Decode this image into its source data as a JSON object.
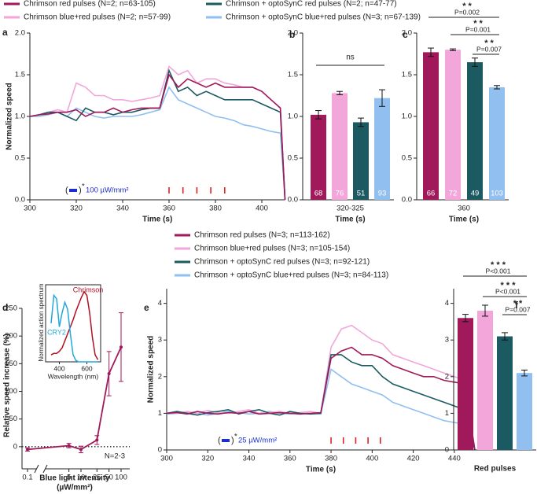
{
  "chart_data": [
    {
      "panel": "a",
      "type": "line",
      "xlabel": "Time (s)",
      "ylabel": "Normalized speed",
      "xlim": [
        300,
        410
      ],
      "xticks": [
        300,
        320,
        340,
        360,
        380,
        400
      ],
      "ylim": [
        0,
        2
      ],
      "yticks": [
        {
          "value": 0,
          "label": "0.0"
        },
        {
          "value": 0.5,
          "label": "0.5"
        },
        {
          "value": 1,
          "label": "1.0"
        },
        {
          "value": 1.5,
          "label": "1.5"
        },
        {
          "value": 2,
          "label": "2.0"
        }
      ],
      "x": [
        300,
        304,
        308,
        312,
        316,
        320,
        324,
        328,
        332,
        336,
        340,
        344,
        348,
        352,
        356,
        360,
        364,
        368,
        372,
        376,
        380,
        384,
        388,
        392,
        396,
        400,
        404,
        408,
        410
      ],
      "series": [
        {
          "name": "Chrimson red pulses (N=2; n=63-105)",
          "color": "#a0195a",
          "values": [
            1.0,
            1.02,
            1.03,
            1.05,
            1.05,
            1.08,
            1.0,
            1.05,
            1.05,
            1.1,
            1.05,
            1.08,
            1.1,
            1.1,
            1.1,
            1.5,
            1.35,
            1.45,
            1.4,
            1.35,
            1.4,
            1.35,
            1.35,
            1.35,
            1.35,
            1.3,
            1.2,
            1.1,
            0
          ]
        },
        {
          "name": "Chrimson blue+red pulses (N=2; n=57-99)",
          "color": "#f2a6da",
          "values": [
            1.0,
            1.02,
            1.05,
            1.08,
            1.05,
            1.4,
            1.35,
            1.25,
            1.25,
            1.2,
            1.2,
            1.18,
            1.2,
            1.22,
            1.25,
            1.6,
            1.5,
            1.55,
            1.4,
            1.45,
            1.45,
            1.4,
            1.38,
            1.35,
            1.35,
            1.3,
            1.2,
            1.1,
            0
          ]
        },
        {
          "name": "Chrimson + optoSynC red pulses (N=2; n=47-77)",
          "color": "#1c5a62",
          "values": [
            1.0,
            1.02,
            1.05,
            1.05,
            1.0,
            0.95,
            1.1,
            1.05,
            1.05,
            1.02,
            1.05,
            1.05,
            1.08,
            1.1,
            1.1,
            1.55,
            1.3,
            1.35,
            1.25,
            1.3,
            1.25,
            1.2,
            1.2,
            1.2,
            1.2,
            1.15,
            1.1,
            1.05,
            0
          ]
        },
        {
          "name": "Chrimson + optoSynC blue+red pulses (N=3; n=67-139)",
          "color": "#90bff0",
          "values": [
            1.0,
            1.0,
            1.02,
            1.05,
            1.0,
            1.1,
            1.05,
            1.0,
            0.98,
            1.0,
            1.0,
            1.0,
            1.02,
            1.05,
            1.08,
            1.35,
            1.2,
            1.15,
            1.1,
            1.05,
            1.0,
            0.98,
            0.95,
            0.9,
            0.88,
            0.85,
            0.82,
            0.8,
            0
          ]
        }
      ],
      "red_pulses": [
        360,
        366,
        372,
        378,
        384
      ],
      "light_note": {
        "open": "(",
        "close": ")",
        "mark": "*",
        "label": "100 µW/mm²"
      },
      "legend": "top"
    },
    {
      "panel": "b",
      "type": "bar",
      "xlabel": "Time (s)",
      "category": "320-325",
      "colors": [
        "#a0195a",
        "#f2a6da",
        "#1c5a62",
        "#90bff0"
      ],
      "values": [
        1.02,
        1.28,
        0.93,
        1.22
      ],
      "errors": [
        0.05,
        0.02,
        0.05,
        0.1
      ],
      "n_labels": [
        68,
        76,
        51,
        93
      ],
      "ylim": [
        0,
        2
      ],
      "yticks": [
        {
          "value": 0,
          "label": "0.0"
        },
        {
          "value": 0.5,
          "label": "0.5"
        },
        {
          "value": 1,
          "label": "1.0"
        },
        {
          "value": 1.5,
          "label": "1.5"
        },
        {
          "value": 2,
          "label": "2.0"
        }
      ],
      "significance": [
        {
          "from": 0,
          "to": 3,
          "stars": "ns"
        }
      ]
    },
    {
      "panel": "c",
      "type": "bar",
      "xlabel": "Time (s)",
      "category": "360",
      "colors": [
        "#a0195a",
        "#f2a6da",
        "#1c5a62",
        "#90bff0"
      ],
      "values": [
        1.77,
        1.8,
        1.65,
        1.35
      ],
      "errors": [
        0.05,
        0.01,
        0.05,
        0.02
      ],
      "n_labels": [
        66,
        72,
        49,
        103
      ],
      "ylim": [
        0,
        2
      ],
      "yticks": [
        {
          "value": 0,
          "label": "0.0"
        },
        {
          "value": 0.5,
          "label": "0.5"
        },
        {
          "value": 1,
          "label": "1.0"
        },
        {
          "value": 1.5,
          "label": "1.5"
        },
        {
          "value": 2,
          "label": "2.0"
        }
      ],
      "significance": [
        {
          "from": 0,
          "to": 3,
          "stars": "* *",
          "p": "P=0.002"
        },
        {
          "from": 1,
          "to": 3,
          "stars": "* *",
          "p": "P=0.001"
        },
        {
          "from": 2,
          "to": 3,
          "stars": "* *",
          "p": "P=0.007"
        }
      ]
    },
    {
      "panel": "d",
      "type": "errorline",
      "xlabel": [
        "Blue light intensity",
        "(µW/mm²)"
      ],
      "ylabel": "Relative speed increase (%)",
      "xscale": "log",
      "axis_break": true,
      "x": [
        0.1,
        5,
        10,
        25,
        50,
        100
      ],
      "xticks": [
        0.1,
        5,
        10,
        25,
        50,
        100
      ],
      "values": [
        -5,
        2,
        -5,
        12,
        132,
        180
      ],
      "errors": [
        3,
        4,
        6,
        8,
        40,
        62
      ],
      "color": "#a0195a",
      "ylim": [
        -40,
        250
      ],
      "yticks": [
        0,
        50,
        100,
        150,
        200,
        250
      ],
      "reference_line": 0,
      "annotation": "N=2-3"
    },
    {
      "type": "spectrum",
      "xlabel": "Wavelength (nm)",
      "ylabel": "Normalized action spectrum",
      "xlim": [
        300,
        700
      ],
      "xticks": [
        400,
        600
      ],
      "ylim": [
        0,
        1.1
      ],
      "x": [
        340,
        360,
        380,
        400,
        420,
        440,
        460,
        480,
        500,
        520,
        540,
        560,
        580,
        600,
        620,
        640,
        660,
        680
      ],
      "series": [
        {
          "name": "Chrimson",
          "color": "#b01020",
          "values": [
            0.1,
            0.12,
            0.12,
            0.15,
            0.2,
            0.3,
            0.4,
            0.5,
            0.6,
            0.72,
            0.82,
            0.92,
            1.0,
            0.95,
            0.7,
            0.35,
            0.1,
            0.03
          ]
        },
        {
          "name": "CRY2",
          "color": "#22a8dc",
          "values": [
            0.55,
            0.95,
            0.9,
            0.5,
            0.7,
            0.85,
            0.75,
            0.4,
            0.1,
            0.02,
            0,
            0,
            0,
            0,
            0,
            0,
            0,
            0
          ]
        }
      ]
    },
    {
      "panel": "e",
      "type": "line",
      "xlabel": "Time (s)",
      "ylabel": "Normalized speed",
      "xlim": [
        300,
        450
      ],
      "xticks": [
        300,
        320,
        340,
        360,
        380,
        400,
        420,
        440
      ],
      "ylim": [
        0,
        4.4
      ],
      "yticks": [
        0,
        1,
        2,
        3,
        4
      ],
      "x": [
        300,
        305,
        310,
        315,
        320,
        325,
        330,
        335,
        340,
        345,
        350,
        355,
        360,
        365,
        370,
        375,
        380,
        385,
        390,
        395,
        400,
        405,
        410,
        415,
        420,
        425,
        430,
        435,
        440,
        445,
        450
      ],
      "series": [
        {
          "name": "Chrimson red pulses (N=3; n=113-162)",
          "color": "#a0195a",
          "values": [
            1.0,
            1.02,
            0.98,
            1.05,
            1.0,
            0.98,
            1.02,
            1.0,
            1.05,
            0.98,
            1.0,
            1.02,
            1.0,
            0.98,
            1.0,
            1.02,
            2.5,
            2.7,
            2.8,
            2.6,
            2.6,
            2.5,
            2.3,
            2.2,
            2.1,
            2.0,
            2.0,
            1.9,
            1.85,
            1.8,
            0
          ]
        },
        {
          "name": "Chrimson blue+red pulses (N=3; n=105-154)",
          "color": "#f2a6da",
          "values": [
            1.02,
            1.0,
            1.05,
            1.0,
            1.08,
            1.02,
            1.0,
            1.05,
            1.1,
            1.0,
            1.02,
            1.05,
            1.0,
            1.02,
            1.05,
            1.0,
            2.8,
            3.3,
            3.4,
            3.2,
            3.0,
            2.9,
            2.6,
            2.5,
            2.4,
            2.3,
            2.2,
            2.1,
            2.0,
            1.9,
            0
          ]
        },
        {
          "name": "Chrimson + optoSynC red pulses (N=3; n=92-121)",
          "color": "#1c5a62",
          "values": [
            1.0,
            1.05,
            1.0,
            0.95,
            1.02,
            1.05,
            1.1,
            0.98,
            1.05,
            1.1,
            1.0,
            0.95,
            1.05,
            1.0,
            0.98,
            1.0,
            2.6,
            2.6,
            2.4,
            2.3,
            2.3,
            2.0,
            1.8,
            1.7,
            1.6,
            1.5,
            1.4,
            1.3,
            1.2,
            1.1,
            0
          ]
        },
        {
          "name": "Chrimson + optoSynC blue+red pulses (N=3; n=84-113)",
          "color": "#90bff0",
          "values": [
            0.98,
            1.0,
            1.02,
            1.0,
            0.95,
            1.0,
            1.05,
            1.02,
            0.98,
            1.0,
            1.05,
            1.0,
            0.98,
            1.02,
            1.0,
            0.98,
            2.2,
            2.0,
            1.8,
            1.7,
            1.6,
            1.5,
            1.3,
            1.2,
            1.1,
            1.0,
            0.9,
            0.8,
            0.75,
            0.7,
            0
          ]
        }
      ],
      "red_pulses": [
        380,
        386,
        392,
        398,
        404
      ],
      "light_note": {
        "open": "(",
        "close": ")",
        "mark": "*",
        "label": "25 µW/mm²"
      },
      "legend": "upper center"
    },
    {
      "panel": "f",
      "type": "bar",
      "xlabel": "Red pulses",
      "colors": [
        "#a0195a",
        "#f2a6da",
        "#1c5a62",
        "#90bff0"
      ],
      "values": [
        3.6,
        3.8,
        3.1,
        2.1
      ],
      "errors": [
        0.1,
        0.15,
        0.1,
        0.08
      ],
      "ylim": [
        0,
        4.4
      ],
      "yticks": [
        0,
        1,
        2,
        3,
        4
      ],
      "significance": [
        {
          "from": 0,
          "to": 3,
          "stars": "* * *",
          "p": "P<0.001"
        },
        {
          "from": 1,
          "to": 3,
          "stars": "* * *",
          "p": "P<0.001"
        },
        {
          "from": 2,
          "to": 3,
          "stars": "* *",
          "p": "P=0.007"
        }
      ]
    }
  ]
}
